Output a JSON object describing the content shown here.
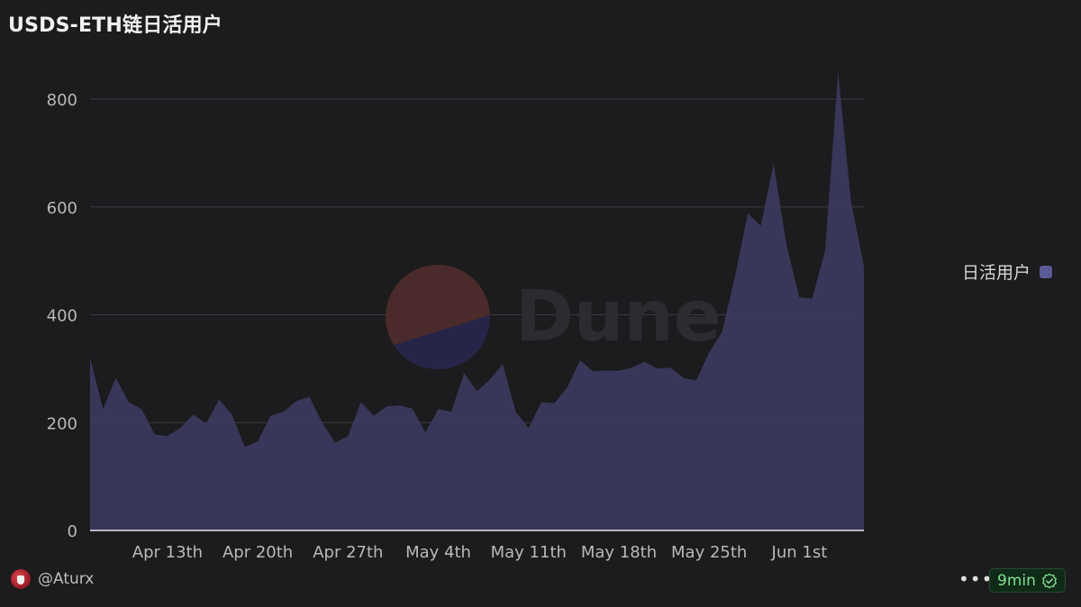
{
  "title": "USDS-ETH链日活用户",
  "footer": {
    "author": "@Aturx",
    "more_label": "•••",
    "age": "9min"
  },
  "watermark": "Dune",
  "colors": {
    "background": "#1c1b1d",
    "series": "#3b3a5e",
    "legend_swatch": "#5b5a96",
    "grid": "#3a3a3e",
    "axis_text": "#b9b9b9",
    "badge_text": "#7ee08f"
  },
  "chart_data": {
    "type": "area",
    "ylim": [
      0,
      860
    ],
    "yticks": [
      0,
      200,
      400,
      600,
      800
    ],
    "grid": true,
    "legend_position": "right",
    "x_tick_labels": [
      "Apr 13th",
      "Apr 20th",
      "Apr 27th",
      "May 4th",
      "May 11th",
      "May 18th",
      "May 25th",
      "Jun 1st"
    ],
    "x_tick_indices": [
      6,
      13,
      20,
      27,
      34,
      41,
      48,
      55
    ],
    "series": [
      {
        "name": "日活用户",
        "values": [
          320,
          225,
          283,
          238,
          225,
          178,
          175,
          190,
          215,
          198,
          243,
          215,
          155,
          165,
          213,
          220,
          240,
          248,
          200,
          163,
          175,
          238,
          213,
          230,
          232,
          226,
          182,
          225,
          220,
          292,
          258,
          280,
          308,
          220,
          190,
          238,
          236,
          265,
          315,
          295,
          297,
          296,
          302,
          313,
          300,
          302,
          283,
          278,
          330,
          368,
          470,
          588,
          565,
          680,
          530,
          432,
          430,
          520,
          850,
          610,
          490
        ]
      }
    ]
  }
}
